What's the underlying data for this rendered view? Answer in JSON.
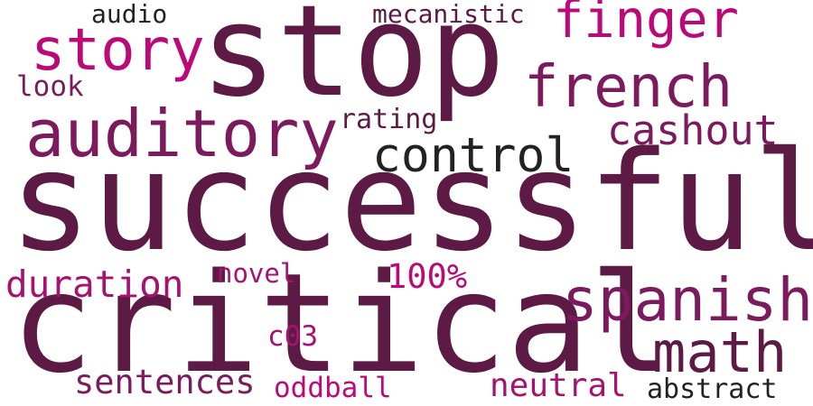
{
  "colors": {
    "background": "#ffffff",
    "dark_purple": "#5c1a45",
    "plum": "#7c1a5e",
    "magenta": "#a6136f",
    "bright_magenta": "#bb0a78",
    "charcoal": "#222222"
  },
  "words": [
    {
      "text": "successful",
      "color": "#5c1a45"
    },
    {
      "text": "critical",
      "color": "#5c1a45"
    },
    {
      "text": "stop",
      "color": "#5c1a45"
    },
    {
      "text": "auditory",
      "color": "#7c1a5e"
    },
    {
      "text": "french",
      "color": "#7c1a5e"
    },
    {
      "text": "story",
      "color": "#bb0a78"
    },
    {
      "text": "finger",
      "color": "#bb0a78"
    },
    {
      "text": "spanish",
      "color": "#7c1a5e"
    },
    {
      "text": "math",
      "color": "#5c1a45"
    },
    {
      "text": "control",
      "color": "#222222"
    },
    {
      "text": "cashout",
      "color": "#7c1a5e"
    },
    {
      "text": "duration",
      "color": "#a6136f"
    },
    {
      "text": "sentences",
      "color": "#7c1a5e"
    },
    {
      "text": "neutral",
      "color": "#a6136f"
    },
    {
      "text": "abstract",
      "color": "#222222"
    },
    {
      "text": "oddball",
      "color": "#bb0a78"
    },
    {
      "text": "100%",
      "color": "#bb0a78"
    },
    {
      "text": "c03",
      "color": "#a6136f"
    },
    {
      "text": "novel",
      "color": "#a6136f"
    },
    {
      "text": "rating",
      "color": "#5c1a45"
    },
    {
      "text": "mecanistic",
      "color": "#5c1a45"
    },
    {
      "text": "audio",
      "color": "#222222"
    },
    {
      "text": "look",
      "color": "#7c1a5e"
    }
  ]
}
